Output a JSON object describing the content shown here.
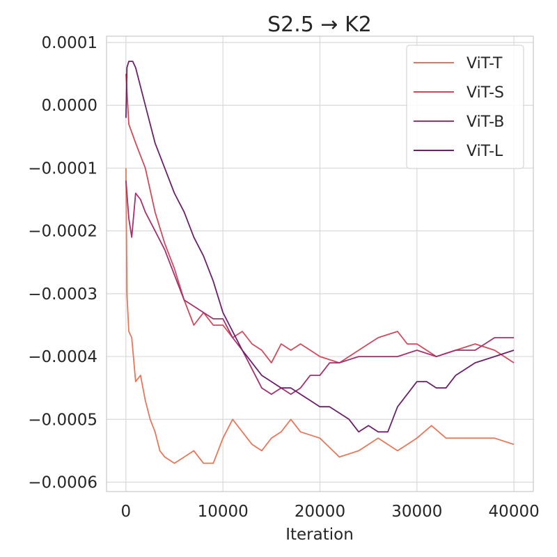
{
  "chart_data": {
    "type": "line",
    "title": "S2.5 → K2",
    "xlabel": "Iteration",
    "ylabel": "",
    "xlim": [
      -2000,
      42000
    ],
    "ylim": [
      -0.000615,
      0.00011
    ],
    "xticks": [
      0,
      10000,
      20000,
      30000,
      40000
    ],
    "xtick_labels": [
      "0",
      "10000",
      "20000",
      "30000",
      "40000"
    ],
    "yticks": [
      0.0001,
      0.0,
      -0.0001,
      -0.0002,
      -0.0003,
      -0.0004,
      -0.0005,
      -0.0006
    ],
    "ytick_labels": [
      "0.0001",
      "0.0000",
      "−0.0001",
      "−0.0002",
      "−0.0003",
      "−0.0004",
      "−0.0005",
      "−0.0006"
    ],
    "grid": true,
    "legend_position": "top-right",
    "series": [
      {
        "name": "ViT-T",
        "color": "#e8775a",
        "points": [
          [
            0,
            -0.0001
          ],
          [
            100,
            -0.0003
          ],
          [
            300,
            -0.00036
          ],
          [
            600,
            -0.00037
          ],
          [
            1000,
            -0.00044
          ],
          [
            1500,
            -0.00043
          ],
          [
            2000,
            -0.00047
          ],
          [
            2500,
            -0.0005
          ],
          [
            3000,
            -0.00052
          ],
          [
            3500,
            -0.00055
          ],
          [
            4000,
            -0.00056
          ],
          [
            5000,
            -0.00057
          ],
          [
            6000,
            -0.00056
          ],
          [
            7000,
            -0.00055
          ],
          [
            8000,
            -0.00057
          ],
          [
            9000,
            -0.00057
          ],
          [
            10000,
            -0.00053
          ],
          [
            11000,
            -0.0005
          ],
          [
            12000,
            -0.00052
          ],
          [
            13000,
            -0.00054
          ],
          [
            14000,
            -0.00055
          ],
          [
            15000,
            -0.00053
          ],
          [
            16000,
            -0.00052
          ],
          [
            17000,
            -0.0005
          ],
          [
            18000,
            -0.00052
          ],
          [
            20000,
            -0.00053
          ],
          [
            22000,
            -0.00056
          ],
          [
            24000,
            -0.00055
          ],
          [
            26000,
            -0.00053
          ],
          [
            28000,
            -0.00055
          ],
          [
            30000,
            -0.00053
          ],
          [
            31500,
            -0.00051
          ],
          [
            33000,
            -0.00053
          ],
          [
            36000,
            -0.00053
          ],
          [
            38000,
            -0.00053
          ],
          [
            40000,
            -0.00054
          ]
        ]
      },
      {
        "name": "ViT-S",
        "color": "#d14a5a",
        "points": [
          [
            0,
            5e-05
          ],
          [
            300,
            -3e-05
          ],
          [
            1000,
            -6e-05
          ],
          [
            2000,
            -0.0001
          ],
          [
            3000,
            -0.00017
          ],
          [
            4000,
            -0.00022
          ],
          [
            5000,
            -0.00026
          ],
          [
            6000,
            -0.00031
          ],
          [
            7000,
            -0.00035
          ],
          [
            8000,
            -0.00033
          ],
          [
            9000,
            -0.00035
          ],
          [
            10000,
            -0.00035
          ],
          [
            11000,
            -0.00037
          ],
          [
            12000,
            -0.00036
          ],
          [
            13000,
            -0.00038
          ],
          [
            14000,
            -0.00039
          ],
          [
            15000,
            -0.00041
          ],
          [
            16000,
            -0.00038
          ],
          [
            17000,
            -0.00039
          ],
          [
            18000,
            -0.00038
          ],
          [
            19000,
            -0.00039
          ],
          [
            20000,
            -0.0004
          ],
          [
            22000,
            -0.00041
          ],
          [
            24000,
            -0.00039
          ],
          [
            26000,
            -0.00037
          ],
          [
            28000,
            -0.00036
          ],
          [
            29000,
            -0.00038
          ],
          [
            30000,
            -0.00038
          ],
          [
            32000,
            -0.0004
          ],
          [
            34000,
            -0.00039
          ],
          [
            36000,
            -0.00038
          ],
          [
            38000,
            -0.00039
          ],
          [
            40000,
            -0.00041
          ]
        ]
      },
      {
        "name": "ViT-B",
        "color": "#a5306e",
        "points": [
          [
            0,
            -0.00012
          ],
          [
            300,
            -0.00018
          ],
          [
            600,
            -0.00021
          ],
          [
            1000,
            -0.00014
          ],
          [
            1500,
            -0.00015
          ],
          [
            2000,
            -0.00017
          ],
          [
            3000,
            -0.0002
          ],
          [
            4000,
            -0.00023
          ],
          [
            5000,
            -0.00027
          ],
          [
            6000,
            -0.00031
          ],
          [
            7000,
            -0.00032
          ],
          [
            8000,
            -0.00033
          ],
          [
            9000,
            -0.00034
          ],
          [
            10000,
            -0.00034
          ],
          [
            11000,
            -0.00037
          ],
          [
            12000,
            -0.00039
          ],
          [
            13000,
            -0.00042
          ],
          [
            14000,
            -0.00045
          ],
          [
            15000,
            -0.00046
          ],
          [
            16000,
            -0.00045
          ],
          [
            17000,
            -0.00046
          ],
          [
            18000,
            -0.00045
          ],
          [
            19000,
            -0.00043
          ],
          [
            20000,
            -0.00043
          ],
          [
            21000,
            -0.00041
          ],
          [
            22000,
            -0.00041
          ],
          [
            24000,
            -0.0004
          ],
          [
            26000,
            -0.0004
          ],
          [
            28000,
            -0.0004
          ],
          [
            30000,
            -0.00039
          ],
          [
            32000,
            -0.0004
          ],
          [
            34000,
            -0.00039
          ],
          [
            36000,
            -0.00039
          ],
          [
            38000,
            -0.00037
          ],
          [
            40000,
            -0.00037
          ]
        ]
      },
      {
        "name": "ViT-L",
        "color": "#6b1f6b",
        "points": [
          [
            0,
            -2e-05
          ],
          [
            100,
            6e-05
          ],
          [
            300,
            7e-05
          ],
          [
            700,
            7e-05
          ],
          [
            1000,
            6e-05
          ],
          [
            2000,
            0.0
          ],
          [
            3000,
            -6e-05
          ],
          [
            4000,
            -0.0001
          ],
          [
            5000,
            -0.00014
          ],
          [
            6000,
            -0.00017
          ],
          [
            7000,
            -0.00021
          ],
          [
            8000,
            -0.00024
          ],
          [
            9000,
            -0.00028
          ],
          [
            10000,
            -0.00033
          ],
          [
            11000,
            -0.00036
          ],
          [
            12000,
            -0.00039
          ],
          [
            13000,
            -0.00041
          ],
          [
            14000,
            -0.00043
          ],
          [
            15000,
            -0.00044
          ],
          [
            16000,
            -0.00045
          ],
          [
            17000,
            -0.00045
          ],
          [
            18000,
            -0.00046
          ],
          [
            19000,
            -0.00047
          ],
          [
            20000,
            -0.00048
          ],
          [
            21000,
            -0.00048
          ],
          [
            22000,
            -0.00049
          ],
          [
            23000,
            -0.0005
          ],
          [
            24000,
            -0.00052
          ],
          [
            25000,
            -0.00051
          ],
          [
            26000,
            -0.00052
          ],
          [
            27000,
            -0.00052
          ],
          [
            28000,
            -0.00048
          ],
          [
            29000,
            -0.00046
          ],
          [
            30000,
            -0.00044
          ],
          [
            31000,
            -0.00044
          ],
          [
            32000,
            -0.00045
          ],
          [
            33000,
            -0.00045
          ],
          [
            34000,
            -0.00043
          ],
          [
            36000,
            -0.00041
          ],
          [
            38000,
            -0.0004
          ],
          [
            40000,
            -0.00039
          ]
        ]
      }
    ]
  }
}
